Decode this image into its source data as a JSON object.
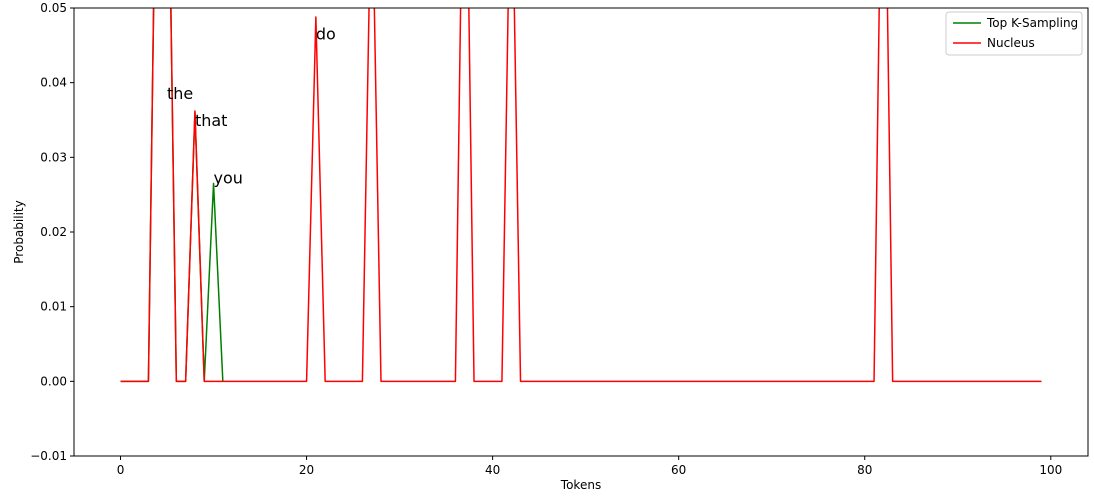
{
  "chart_data": {
    "type": "line",
    "title": "",
    "xlabel": "Tokens",
    "ylabel": "Probability",
    "xlim": [
      -5,
      104
    ],
    "ylim": [
      -0.01,
      0.05
    ],
    "xticks": [
      0,
      20,
      40,
      60,
      80,
      100
    ],
    "yticks": [
      -0.01,
      0.0,
      0.01,
      0.02,
      0.03,
      0.04,
      0.05
    ],
    "ytick_labels": [
      "−0.01",
      "0.00",
      "0.01",
      "0.02",
      "0.03",
      "0.04",
      "0.05"
    ],
    "legend_position": "top-right",
    "grid": false,
    "series": [
      {
        "name": "Top K-Sampling",
        "color": "#008000",
        "points": [
          [
            0,
            0
          ],
          [
            3,
            0
          ],
          [
            4,
            0.09
          ],
          [
            5,
            0.085
          ],
          [
            6,
            0
          ],
          [
            7,
            0
          ],
          [
            8,
            0.036
          ],
          [
            9,
            0
          ],
          [
            10,
            0.0265
          ],
          [
            11,
            0
          ]
        ]
      },
      {
        "name": "Nucleus",
        "color": "#ff0000",
        "points": [
          [
            0,
            0
          ],
          [
            3,
            0
          ],
          [
            4,
            0.09
          ],
          [
            5,
            0.085
          ],
          [
            6,
            0
          ],
          [
            7,
            0
          ],
          [
            8,
            0.0362
          ],
          [
            9,
            0
          ],
          [
            20,
            0
          ],
          [
            21,
            0.0488
          ],
          [
            22,
            0
          ],
          [
            26,
            0
          ],
          [
            27,
            0.07
          ],
          [
            28,
            0
          ],
          [
            36,
            0
          ],
          [
            37,
            0.09
          ],
          [
            38,
            0
          ],
          [
            41,
            0
          ],
          [
            42,
            0.075
          ],
          [
            43,
            0
          ],
          [
            81,
            0
          ],
          [
            82,
            0.09
          ],
          [
            83,
            0
          ],
          [
            99,
            0
          ]
        ]
      }
    ],
    "annotations": [
      {
        "text": "the",
        "x": 5.0,
        "y": 0.0378
      },
      {
        "text": "that",
        "x": 8.0,
        "y": 0.0342
      },
      {
        "text": "you",
        "x": 10.0,
        "y": 0.0265
      },
      {
        "text": "do",
        "x": 21.0,
        "y": 0.0458
      }
    ]
  }
}
